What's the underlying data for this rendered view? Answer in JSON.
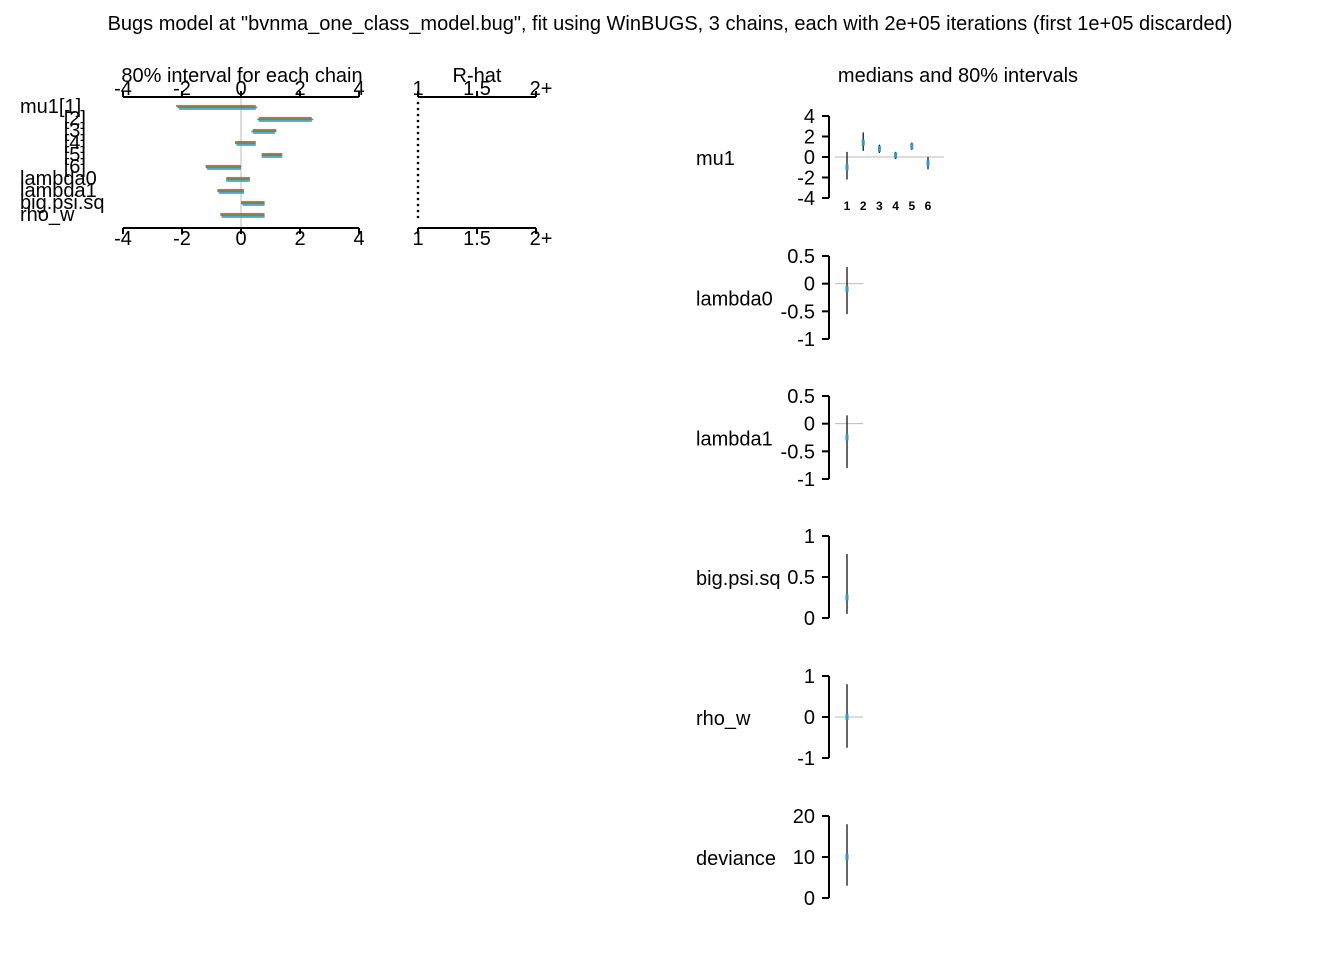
{
  "title": "Bugs model at \"bvnma_one_class_model.bug\", fit using WinBUGS, 3 chains, each with 2e+05 iterations (first 1e+05 discarded)",
  "chain_colors": [
    "#cc3333",
    "#33aa55",
    "#3399cc"
  ],
  "chart_data": [
    {
      "type": "chain-interval",
      "title": "80% interval for each chain",
      "xlim": [
        -4,
        4
      ],
      "ticks": [
        "-4",
        "-2",
        "0",
        "2",
        "4"
      ],
      "row_labels": [
        "mu1[1]",
        "[2]",
        "[3]",
        "[4]",
        "[5]",
        "[6]",
        "lambda0",
        "lambda1",
        "big.psi.sq",
        "rho_w"
      ],
      "series": [
        {
          "values": [
            [
              -2.2,
              0.5
            ],
            [
              0.6,
              2.4
            ],
            [
              0.4,
              1.2
            ],
            [
              -0.2,
              0.5
            ],
            [
              0.7,
              1.4
            ],
            [
              -1.2,
              0.0
            ],
            [
              -0.5,
              0.3
            ],
            [
              -0.8,
              0.1
            ],
            [
              0.0,
              0.8
            ],
            [
              -0.7,
              0.8
            ]
          ]
        },
        {
          "values": [
            [
              -2.15,
              0.55
            ],
            [
              0.55,
              2.45
            ],
            [
              0.35,
              1.2
            ],
            [
              -0.2,
              0.5
            ],
            [
              0.7,
              1.4
            ],
            [
              -1.2,
              0.0
            ],
            [
              -0.5,
              0.3
            ],
            [
              -0.8,
              0.1
            ],
            [
              0.0,
              0.8
            ],
            [
              -0.7,
              0.8
            ]
          ]
        },
        {
          "values": [
            [
              -2.1,
              0.5
            ],
            [
              0.6,
              2.4
            ],
            [
              0.4,
              1.15
            ],
            [
              -0.15,
              0.5
            ],
            [
              0.7,
              1.4
            ],
            [
              -1.15,
              0.0
            ],
            [
              -0.5,
              0.3
            ],
            [
              -0.75,
              0.1
            ],
            [
              0.05,
              0.8
            ],
            [
              -0.65,
              0.8
            ]
          ]
        }
      ]
    },
    {
      "type": "scatter",
      "title": "R-hat",
      "xlim": [
        1,
        2
      ],
      "ticks": [
        "1",
        "1.5",
        "2+"
      ],
      "values": [
        1,
        1,
        1,
        1,
        1,
        1,
        1,
        1,
        1,
        1
      ]
    },
    {
      "type": "interval",
      "title": "medians and 80% intervals",
      "panels": [
        {
          "label": "mu1",
          "ylim": [
            -4,
            4
          ],
          "ticks": [
            "4",
            "2",
            "0",
            "-2",
            "-4"
          ],
          "categories": [
            "1",
            "2",
            "3",
            "4",
            "5",
            "6"
          ],
          "lo": [
            -2.2,
            0.6,
            0.4,
            -0.2,
            0.7,
            -1.2
          ],
          "median": [
            -1.0,
            1.4,
            0.8,
            0.15,
            1.05,
            -0.6
          ],
          "hi": [
            0.5,
            2.4,
            1.2,
            0.5,
            1.4,
            0.0
          ],
          "refline": 0
        },
        {
          "label": "lambda0",
          "ylim": [
            -1,
            0.5
          ],
          "ticks": [
            "0.5",
            "0",
            "-0.5",
            "-1"
          ],
          "lo": [
            -0.55
          ],
          "median": [
            -0.1
          ],
          "hi": [
            0.3
          ],
          "refline": 0
        },
        {
          "label": "lambda1",
          "ylim": [
            -1,
            0.5
          ],
          "ticks": [
            "0.5",
            "0",
            "-0.5",
            "-1"
          ],
          "lo": [
            -0.8
          ],
          "median": [
            -0.25
          ],
          "hi": [
            0.15
          ],
          "refline": 0
        },
        {
          "label": "big.psi.sq",
          "ylim": [
            0,
            1
          ],
          "ticks": [
            "1",
            "0.5",
            "0"
          ],
          "lo": [
            0.05
          ],
          "median": [
            0.25
          ],
          "hi": [
            0.78
          ],
          "refline": null
        },
        {
          "label": "rho_w",
          "ylim": [
            -1,
            1
          ],
          "ticks": [
            "1",
            "0",
            "-1"
          ],
          "lo": [
            -0.75
          ],
          "median": [
            0.0
          ],
          "hi": [
            0.8
          ],
          "refline": 0
        },
        {
          "label": "deviance",
          "ylim": [
            0,
            20
          ],
          "ticks": [
            "20",
            "10",
            "0"
          ],
          "lo": [
            3
          ],
          "median": [
            10
          ],
          "hi": [
            18
          ],
          "refline": null
        }
      ]
    }
  ]
}
